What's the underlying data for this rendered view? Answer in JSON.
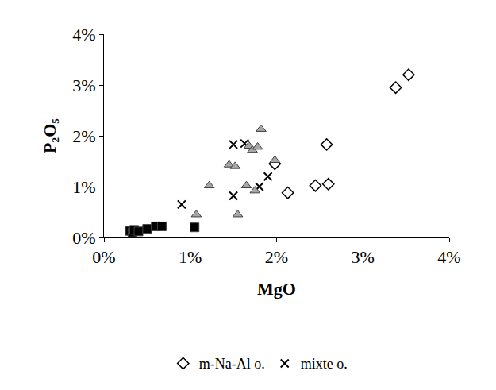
{
  "chart_data": {
    "type": "scatter",
    "x_label": "MgO",
    "y_label": "P₂O₅",
    "xlim": [
      0,
      4
    ],
    "ylim": [
      0,
      4
    ],
    "xticks": [
      {
        "value": 0,
        "label": "0%"
      },
      {
        "value": 1,
        "label": "1%"
      },
      {
        "value": 2,
        "label": "2%"
      },
      {
        "value": 3,
        "label": "3%"
      },
      {
        "value": 4,
        "label": "4%"
      }
    ],
    "yticks": [
      {
        "value": 0,
        "label": "0%"
      },
      {
        "value": 1,
        "label": "1%"
      },
      {
        "value": 2,
        "label": "2%"
      },
      {
        "value": 3,
        "label": "3%"
      },
      {
        "value": 4,
        "label": "4%"
      }
    ],
    "grid": false,
    "legend": "bottom",
    "series": [
      {
        "name": "m-Na-Al o.",
        "color": "#000000",
        "marker": "diamond-open",
        "x": [
          3.38,
          3.53,
          2.58,
          2.6,
          2.45,
          2.13,
          1.98
        ],
        "values": [
          2.95,
          3.2,
          1.83,
          1.05,
          1.02,
          0.88,
          1.45
        ]
      },
      {
        "name": "mixte o.",
        "color": "#000000",
        "marker": "x",
        "x": [
          0.9,
          1.5,
          1.5,
          1.63,
          1.9,
          1.8
        ],
        "values": [
          0.65,
          1.83,
          0.82,
          1.85,
          1.2,
          1.0
        ]
      },
      {
        "color": "#a6a6a6",
        "marker": "triangle-up",
        "x": [
          1.07,
          1.22,
          1.45,
          1.52,
          1.55,
          1.65,
          1.68,
          1.72,
          1.78,
          1.82,
          1.75,
          1.98
        ],
        "values": [
          0.45,
          1.02,
          1.43,
          1.4,
          0.45,
          1.02,
          1.8,
          1.72,
          1.78,
          2.13,
          0.92,
          1.52
        ]
      },
      {
        "color": "#000000",
        "marker": "square",
        "x": [
          0.3,
          0.33,
          0.35,
          0.4,
          0.5,
          0.6,
          0.67,
          1.05
        ],
        "values": [
          0.13,
          0.1,
          0.15,
          0.12,
          0.17,
          0.22,
          0.22,
          0.2
        ]
      }
    ]
  }
}
